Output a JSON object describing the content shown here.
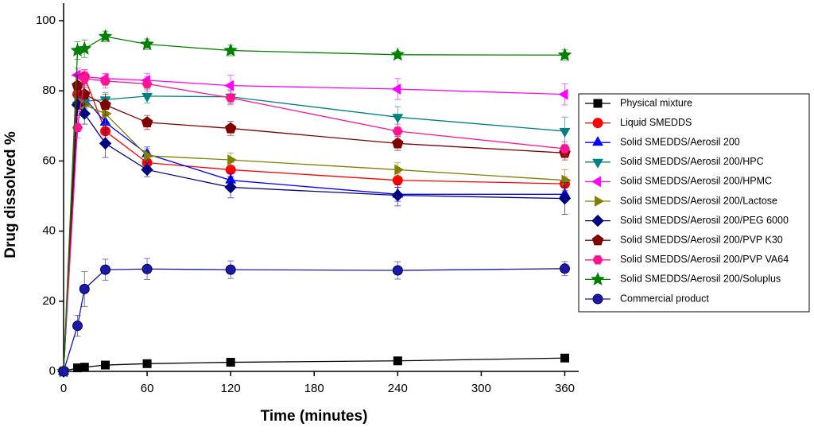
{
  "chart_data": {
    "type": "line",
    "x_label": "Time (minutes)",
    "y_label": "Drug dissolved %",
    "x": [
      0,
      10,
      15,
      30,
      60,
      120,
      240,
      360
    ],
    "xlim": [
      0,
      370
    ],
    "ylim": [
      0,
      105
    ],
    "xticks": [
      0,
      60,
      120,
      180,
      240,
      300,
      360
    ],
    "yticks": [
      0,
      20,
      40,
      60,
      80,
      100
    ],
    "series": [
      {
        "name": "Physical mixture",
        "color": "#000000",
        "marker": "square",
        "values": [
          0,
          1,
          1.2,
          1.8,
          2.2,
          2.6,
          3.0,
          3.8
        ],
        "errors": [
          0,
          0.3,
          0.3,
          0.4,
          0.4,
          0.5,
          0.5,
          0.6
        ]
      },
      {
        "name": "Liquid SMEDDS",
        "color": "#ff0000",
        "marker": "circle",
        "values": [
          0,
          79,
          84,
          68.5,
          59.5,
          57.5,
          54.5,
          53.5
        ],
        "errors": [
          0,
          3,
          2,
          2,
          2,
          2,
          2,
          2
        ]
      },
      {
        "name": "Solid SMEDDS/Aerosil 200",
        "color": "#0000ff",
        "marker": "triangle-up",
        "values": [
          0,
          77,
          78,
          71,
          62,
          54.5,
          50.5,
          50.5
        ],
        "errors": [
          0,
          3,
          3,
          3,
          2,
          2,
          2,
          2
        ]
      },
      {
        "name": "Solid SMEDDS/Aerosil 200/HPC",
        "color": "#008080",
        "marker": "triangle-down",
        "values": [
          0,
          76,
          77,
          77.5,
          78.5,
          78.3,
          72.5,
          68.5
        ],
        "errors": [
          0,
          3,
          3,
          2,
          2,
          2,
          3,
          4
        ]
      },
      {
        "name": "Solid SMEDDS/Aerosil 200/HPMC",
        "color": "#ff00ff",
        "marker": "triangle-left",
        "values": [
          0,
          84.5,
          84,
          83.5,
          83,
          81.5,
          80.5,
          79
        ],
        "errors": [
          0,
          2,
          2,
          1.5,
          2,
          3,
          3,
          3
        ]
      },
      {
        "name": "Solid SMEDDS/Aerosil 200/Lactose",
        "color": "#808000",
        "marker": "triangle-right",
        "values": [
          0,
          77,
          76,
          73.5,
          61.5,
          60.3,
          57.5,
          54.5
        ],
        "errors": [
          0,
          3,
          3,
          3,
          2,
          2,
          2,
          3
        ]
      },
      {
        "name": "Solid SMEDDS/Aerosil 200/PEG 6000",
        "color": "#000080",
        "marker": "diamond",
        "values": [
          0,
          76,
          73.5,
          65,
          57.5,
          52.5,
          50.2,
          49.3
        ],
        "errors": [
          0,
          3,
          3,
          4,
          2,
          3,
          3,
          4.5
        ]
      },
      {
        "name": "Solid SMEDDS/Aerosil 200/PVP K30",
        "color": "#800000",
        "marker": "pentagon",
        "values": [
          0,
          81.5,
          79,
          76,
          71,
          69.3,
          65,
          62.3
        ],
        "errors": [
          0,
          3,
          3,
          3,
          2,
          2,
          2,
          2
        ]
      },
      {
        "name": "Solid SMEDDS/Aerosil 200/PVP VA64",
        "color": "#ff1493",
        "marker": "hexagon",
        "values": [
          0,
          69.5,
          83.5,
          82.8,
          82,
          78,
          68.5,
          63.5
        ],
        "errors": [
          0,
          3,
          2,
          2,
          2,
          2,
          2,
          2
        ]
      },
      {
        "name": "Solid SMEDDS/Aerosil 200/Soluplus",
        "color": "#008000",
        "marker": "star",
        "values": [
          0,
          91.5,
          92,
          95.5,
          93.3,
          91.5,
          90.3,
          90.2
        ],
        "errors": [
          0,
          2.5,
          2.5,
          1.5,
          1.5,
          1.5,
          1,
          1.5
        ]
      },
      {
        "name": "Commercial product",
        "color": "#1a1aa6",
        "marker": "sphere",
        "values": [
          0,
          13,
          23.5,
          29,
          29.2,
          29,
          28.8,
          29.3
        ],
        "errors": [
          0,
          3,
          5,
          3,
          3,
          2.5,
          2.5,
          2
        ]
      }
    ]
  }
}
